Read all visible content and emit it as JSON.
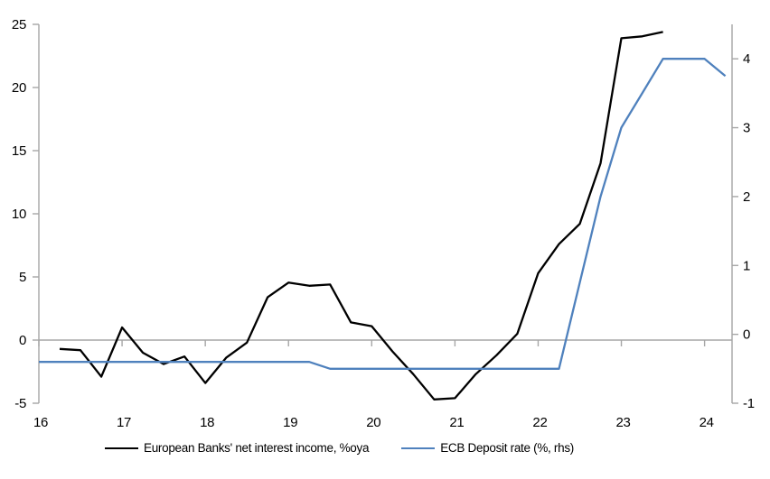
{
  "chart_data": {
    "type": "line",
    "title": "",
    "x_range": [
      16,
      24.33
    ],
    "x_axis": {
      "ticks": [
        16,
        17,
        18,
        19,
        20,
        21,
        22,
        23,
        24
      ]
    },
    "left_axis": {
      "range": [
        -5,
        25
      ],
      "ticks": [
        25,
        20,
        15,
        10,
        5,
        0,
        -5
      ]
    },
    "right_axis": {
      "range": [
        -1,
        4.5
      ],
      "ticks": [
        4,
        3,
        2,
        1,
        0,
        -1
      ]
    },
    "grid": "zero-line-only",
    "legend_position": "bottom",
    "axis_color": "#A6A6A6",
    "series": [
      {
        "name": "European Banks' net interest income, %oya",
        "color": "#000000",
        "axis": "left",
        "x": [
          16.25,
          16.5,
          16.75,
          17.0,
          17.25,
          17.5,
          17.75,
          18.0,
          18.25,
          18.5,
          18.75,
          19.0,
          19.25,
          19.5,
          19.75,
          20.0,
          20.25,
          20.5,
          20.75,
          21.0,
          21.25,
          21.5,
          21.75,
          22.0,
          22.25,
          22.5,
          22.75,
          23.0,
          23.25,
          23.5
        ],
        "values": [
          -0.7,
          -0.8,
          -2.9,
          1.0,
          -1.0,
          -1.9,
          -1.3,
          -3.4,
          -1.4,
          -0.2,
          3.4,
          4.55,
          4.3,
          4.4,
          1.4,
          1.1,
          -0.9,
          -2.7,
          -4.7,
          -4.6,
          -2.7,
          -1.2,
          0.5,
          5.3,
          7.6,
          9.2,
          14.0,
          23.9,
          24.05,
          24.4
        ]
      },
      {
        "name": "ECB Deposit rate (%, rhs)",
        "color": "#4F81BD",
        "axis": "right",
        "x": [
          16.0,
          16.25,
          16.5,
          16.75,
          17.0,
          17.25,
          17.5,
          17.75,
          18.0,
          18.25,
          18.5,
          18.75,
          19.0,
          19.25,
          19.5,
          19.75,
          20.0,
          20.25,
          20.5,
          20.75,
          21.0,
          21.25,
          21.5,
          21.75,
          22.0,
          22.25,
          22.5,
          22.75,
          23.0,
          23.25,
          23.5,
          23.75,
          24.0,
          24.25
        ],
        "values": [
          -0.4,
          -0.4,
          -0.4,
          -0.4,
          -0.4,
          -0.4,
          -0.4,
          -0.4,
          -0.4,
          -0.4,
          -0.4,
          -0.4,
          -0.4,
          -0.4,
          -0.5,
          -0.5,
          -0.5,
          -0.5,
          -0.5,
          -0.5,
          -0.5,
          -0.5,
          -0.5,
          -0.5,
          -0.5,
          -0.5,
          0.75,
          2.0,
          3.0,
          3.5,
          4.0,
          4.0,
          4.0,
          3.75
        ]
      }
    ]
  }
}
